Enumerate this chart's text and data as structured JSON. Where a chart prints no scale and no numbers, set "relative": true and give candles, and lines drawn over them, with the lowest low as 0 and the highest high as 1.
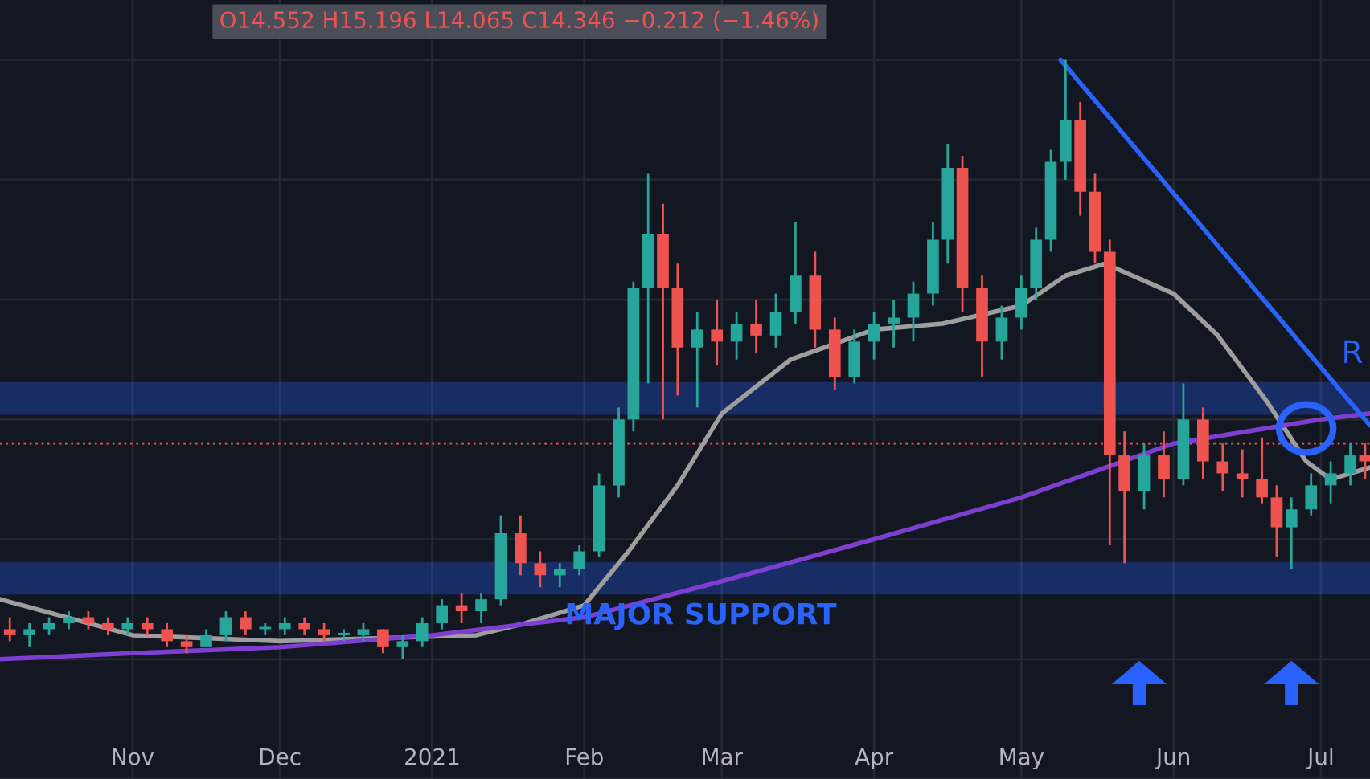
{
  "chart_data": {
    "type": "candlestick",
    "relative": true,
    "tick_labels": "x",
    "grid": true,
    "annotations": [
      "O14.552 H15.196 L14.065 C14.346 −0.212 (−1.46%)",
      {
        "text": "MAJOR SUPPORT",
        "x": "2021-01-28",
        "y": 0.095
      },
      "R"
    ],
    "xlim": [
      "2020-10-05",
      "2021-07-11"
    ],
    "xticks": [
      {
        "value": "2020-11-01",
        "label": "Nov"
      },
      {
        "value": "2020-12-01",
        "label": "Dec"
      },
      {
        "value": "2021-01-01",
        "label": "2021"
      },
      {
        "value": "2021-02-01",
        "label": "Feb"
      },
      {
        "value": "2021-03-01",
        "label": "Mar"
      },
      {
        "value": "2021-04-01",
        "label": "Apr"
      },
      {
        "value": "2021-05-01",
        "label": "May"
      },
      {
        "value": "2021-06-01",
        "label": "Jun"
      },
      {
        "value": "2021-07-01",
        "label": "Jul"
      }
    ],
    "colors": [
      "#ef5350",
      "#26a69a",
      "#26a69a",
      "#26a69a",
      "#ef5350",
      "#ef5350",
      "#26a69a",
      "#ef5350",
      "#ef5350",
      "#ef5350",
      "#26a69a",
      "#26a69a",
      "#ef5350",
      "#26a69a",
      "#26a69a",
      "#ef5350",
      "#ef5350",
      "#26a69a",
      "#26a69a",
      "#ef5350",
      "#26a69a",
      "#26a69a",
      "#26a69a",
      "#ef5350",
      "#26a69a",
      "#26a69a",
      "#ef5350",
      "#ef5350",
      "#26a69a",
      "#26a69a",
      "#26a69a",
      "#26a69a",
      "#26a69a",
      "#26a69a",
      "#ef5350",
      "#ef5350",
      "#26a69a",
      "#ef5350",
      "#26a69a",
      "#ef5350",
      "#26a69a",
      "#26a69a",
      "#ef5350",
      "#ef5350",
      "#26a69a",
      "#26a69a",
      "#26a69a",
      "#26a69a",
      "#26a69a",
      "#26a69a",
      "#ef5350",
      "#ef5350",
      "#26a69a",
      "#26a69a",
      "#26a69a",
      "#26a69a",
      "#26a69a",
      "#ef5350",
      "#ef5350",
      "#ef5350",
      "#ef5350",
      "#26a69a",
      "#ef5350",
      "#26a69a",
      "#ef5350",
      "#ef5350",
      "#ef5350",
      "#ef5350",
      "#ef5350",
      "#26a69a",
      "#26a69a",
      "#26a69a",
      "#26a69a",
      "#ef5350"
    ],
    "x": [
      "2020-10-07",
      "2020-10-11",
      "2020-10-15",
      "2020-10-19",
      "2020-10-23",
      "2020-10-27",
      "2020-10-31",
      "2020-11-04",
      "2020-11-08",
      "2020-11-12",
      "2020-11-16",
      "2020-11-20",
      "2020-11-24",
      "2020-11-28",
      "2020-12-02",
      "2020-12-06",
      "2020-12-10",
      "2020-12-14",
      "2020-12-18",
      "2020-12-22",
      "2020-12-26",
      "2020-12-30",
      "2021-01-03",
      "2021-01-07",
      "2021-01-11",
      "2021-01-15",
      "2021-01-19",
      "2021-01-23",
      "2021-01-27",
      "2021-01-31",
      "2021-02-04",
      "2021-02-08",
      "2021-02-11",
      "2021-02-14",
      "2021-02-17",
      "2021-02-20",
      "2021-02-24",
      "2021-02-28",
      "2021-03-04",
      "2021-03-08",
      "2021-03-12",
      "2021-03-16",
      "2021-03-20",
      "2021-03-24",
      "2021-03-28",
      "2021-04-01",
      "2021-04-05",
      "2021-04-09",
      "2021-04-13",
      "2021-04-16",
      "2021-04-19",
      "2021-04-23",
      "2021-04-27",
      "2021-05-01",
      "2021-05-04",
      "2021-05-07",
      "2021-05-10",
      "2021-05-13",
      "2021-05-16",
      "2021-05-19",
      "2021-05-22",
      "2021-05-26",
      "2021-05-30",
      "2021-06-03",
      "2021-06-07",
      "2021-06-11",
      "2021-06-15",
      "2021-06-19",
      "2021-06-22",
      "2021-06-25",
      "2021-06-29",
      "2021-07-03",
      "2021-07-07",
      "2021-07-10"
    ],
    "ohlc": [
      [
        0.05,
        0.07,
        0.03,
        0.04
      ],
      [
        0.04,
        0.06,
        0.02,
        0.05
      ],
      [
        0.05,
        0.07,
        0.04,
        0.06
      ],
      [
        0.06,
        0.08,
        0.05,
        0.07
      ],
      [
        0.07,
        0.08,
        0.05,
        0.06
      ],
      [
        0.06,
        0.07,
        0.04,
        0.05
      ],
      [
        0.05,
        0.07,
        0.04,
        0.06
      ],
      [
        0.06,
        0.07,
        0.04,
        0.05
      ],
      [
        0.05,
        0.06,
        0.02,
        0.03
      ],
      [
        0.03,
        0.04,
        0.01,
        0.02
      ],
      [
        0.02,
        0.05,
        0.02,
        0.04
      ],
      [
        0.04,
        0.08,
        0.03,
        0.07
      ],
      [
        0.07,
        0.08,
        0.04,
        0.05
      ],
      [
        0.05,
        0.06,
        0.04,
        0.05
      ],
      [
        0.05,
        0.07,
        0.04,
        0.06
      ],
      [
        0.06,
        0.07,
        0.04,
        0.05
      ],
      [
        0.05,
        0.06,
        0.03,
        0.04
      ],
      [
        0.04,
        0.05,
        0.03,
        0.04
      ],
      [
        0.04,
        0.06,
        0.03,
        0.05
      ],
      [
        0.05,
        0.05,
        0.01,
        0.02
      ],
      [
        0.02,
        0.04,
        0.0,
        0.03
      ],
      [
        0.03,
        0.07,
        0.02,
        0.06
      ],
      [
        0.06,
        0.1,
        0.05,
        0.09
      ],
      [
        0.09,
        0.11,
        0.06,
        0.08
      ],
      [
        0.08,
        0.11,
        0.06,
        0.1
      ],
      [
        0.1,
        0.24,
        0.09,
        0.21
      ],
      [
        0.21,
        0.24,
        0.14,
        0.16
      ],
      [
        0.16,
        0.18,
        0.12,
        0.14
      ],
      [
        0.14,
        0.16,
        0.12,
        0.15
      ],
      [
        0.15,
        0.19,
        0.14,
        0.18
      ],
      [
        0.18,
        0.31,
        0.17,
        0.29
      ],
      [
        0.29,
        0.42,
        0.27,
        0.4
      ],
      [
        0.4,
        0.63,
        0.38,
        0.62
      ],
      [
        0.62,
        0.81,
        0.46,
        0.71
      ],
      [
        0.71,
        0.76,
        0.4,
        0.62
      ],
      [
        0.62,
        0.66,
        0.44,
        0.52
      ],
      [
        0.52,
        0.58,
        0.42,
        0.55
      ],
      [
        0.55,
        0.6,
        0.49,
        0.53
      ],
      [
        0.53,
        0.58,
        0.5,
        0.56
      ],
      [
        0.56,
        0.6,
        0.51,
        0.54
      ],
      [
        0.54,
        0.61,
        0.52,
        0.58
      ],
      [
        0.58,
        0.73,
        0.56,
        0.64
      ],
      [
        0.64,
        0.68,
        0.52,
        0.55
      ],
      [
        0.55,
        0.57,
        0.45,
        0.47
      ],
      [
        0.47,
        0.55,
        0.46,
        0.53
      ],
      [
        0.53,
        0.58,
        0.5,
        0.56
      ],
      [
        0.56,
        0.6,
        0.52,
        0.57
      ],
      [
        0.57,
        0.63,
        0.53,
        0.61
      ],
      [
        0.61,
        0.73,
        0.59,
        0.7
      ],
      [
        0.7,
        0.86,
        0.66,
        0.82
      ],
      [
        0.82,
        0.84,
        0.58,
        0.62
      ],
      [
        0.62,
        0.64,
        0.47,
        0.53
      ],
      [
        0.53,
        0.59,
        0.5,
        0.57
      ],
      [
        0.57,
        0.64,
        0.55,
        0.62
      ],
      [
        0.62,
        0.72,
        0.6,
        0.7
      ],
      [
        0.7,
        0.85,
        0.68,
        0.83
      ],
      [
        0.83,
        1.0,
        0.8,
        0.9
      ],
      [
        0.9,
        0.93,
        0.74,
        0.78
      ],
      [
        0.78,
        0.81,
        0.66,
        0.68
      ],
      [
        0.68,
        0.7,
        0.19,
        0.34
      ],
      [
        0.34,
        0.38,
        0.16,
        0.28
      ],
      [
        0.28,
        0.36,
        0.25,
        0.34
      ],
      [
        0.34,
        0.38,
        0.27,
        0.3
      ],
      [
        0.3,
        0.46,
        0.29,
        0.4
      ],
      [
        0.4,
        0.42,
        0.3,
        0.33
      ],
      [
        0.33,
        0.36,
        0.28,
        0.31
      ],
      [
        0.31,
        0.35,
        0.27,
        0.3
      ],
      [
        0.3,
        0.37,
        0.26,
        0.27
      ],
      [
        0.27,
        0.29,
        0.17,
        0.22
      ],
      [
        0.22,
        0.27,
        0.15,
        0.25
      ],
      [
        0.25,
        0.31,
        0.24,
        0.29
      ],
      [
        0.29,
        0.33,
        0.26,
        0.31
      ],
      [
        0.31,
        0.36,
        0.29,
        0.34
      ],
      [
        0.34,
        0.36,
        0.3,
        0.33
      ]
    ],
    "series": [
      {
        "type": "line",
        "color": "#9e9e9e",
        "x": [
          "2020-10-05",
          "2020-11-01",
          "2020-12-01",
          "2021-01-10",
          "2021-01-20",
          "2021-02-01",
          "2021-02-10",
          "2021-02-20",
          "2021-03-01",
          "2021-03-15",
          "2021-04-01",
          "2021-04-15",
          "2021-05-01",
          "2021-05-10",
          "2021-05-18",
          "2021-06-01",
          "2021-06-10",
          "2021-06-20",
          "2021-06-28",
          "2021-07-03",
          "2021-07-11"
        ],
        "values": [
          0.1,
          0.04,
          0.03,
          0.04,
          0.06,
          0.09,
          0.18,
          0.29,
          0.41,
          0.5,
          0.55,
          0.56,
          0.59,
          0.64,
          0.66,
          0.61,
          0.54,
          0.43,
          0.33,
          0.3,
          0.32
        ]
      },
      {
        "type": "line",
        "color": "#7e3fd0",
        "x": [
          "2020-10-05",
          "2020-11-01",
          "2020-12-01",
          "2021-01-01",
          "2021-02-01",
          "2021-03-01",
          "2021-04-01",
          "2021-05-01",
          "2021-06-01",
          "2021-07-01",
          "2021-07-11"
        ],
        "values": [
          0.0,
          0.01,
          0.02,
          0.04,
          0.07,
          0.13,
          0.2,
          0.27,
          0.36,
          0.4,
          0.41
        ]
      },
      {
        "type": "line",
        "color": "#2962ff",
        "x": [
          "2021-05-09",
          "2021-07-11"
        ],
        "values": [
          1.0,
          0.39
        ]
      }
    ],
    "bands": [
      {
        "axis": "y",
        "from": 0.41,
        "to": 0.46,
        "color": "#2962ff"
      },
      {
        "axis": "y",
        "from": 0.11,
        "to": 0.16,
        "color": "#2962ff"
      }
    ],
    "ref_lines": [
      {
        "axis": "y",
        "value": 0.36,
        "color": "#ef5350",
        "line_style": "dotted"
      }
    ]
  }
}
